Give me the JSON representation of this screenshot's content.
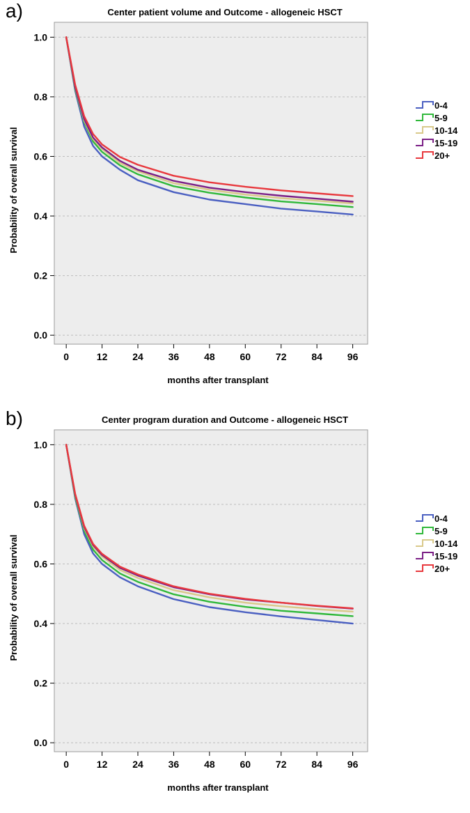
{
  "panels": [
    {
      "label": "a)",
      "chart_data": {
        "type": "line",
        "title": "Center patient volume and Outcome - allogeneic HSCT",
        "xlabel": "months after transplant",
        "ylabel": "Probability of overall survival",
        "xlim": [
          -4,
          101
        ],
        "ylim": [
          -0.03,
          1.05
        ],
        "xticks": [
          0,
          12,
          24,
          36,
          48,
          60,
          72,
          84,
          96
        ],
        "yticks": [
          0.0,
          0.2,
          0.4,
          0.6,
          0.8,
          1.0
        ],
        "ytick_labels": [
          "0.0",
          "0.2",
          "0.4",
          "0.6",
          "0.8",
          "1.0"
        ],
        "grid": "horizontal dashed",
        "legend_position": "right",
        "x": [
          0,
          3,
          6,
          9,
          12,
          18,
          24,
          36,
          48,
          60,
          72,
          84,
          96
        ],
        "series": [
          {
            "name": "0-4",
            "color": "#4a5fc1",
            "values": [
              1.0,
              0.82,
              0.7,
              0.635,
              0.6,
              0.555,
              0.52,
              0.48,
              0.455,
              0.44,
              0.425,
              0.415,
              0.405
            ]
          },
          {
            "name": "5-9",
            "color": "#2fb83a",
            "values": [
              1.0,
              0.825,
              0.715,
              0.65,
              0.615,
              0.57,
              0.54,
              0.5,
              0.478,
              0.462,
              0.449,
              0.44,
              0.43
            ]
          },
          {
            "name": "10-14",
            "color": "#d9c98a",
            "values": [
              1.0,
              0.83,
              0.72,
              0.658,
              0.625,
              0.578,
              0.55,
              0.51,
              0.488,
              0.472,
              0.46,
              0.451,
              0.442
            ]
          },
          {
            "name": "15-19",
            "color": "#7b1f86",
            "values": [
              1.0,
              0.832,
              0.725,
              0.663,
              0.63,
              0.585,
              0.555,
              0.518,
              0.495,
              0.48,
              0.468,
              0.458,
              0.448
            ]
          },
          {
            "name": "20+",
            "color": "#e8383d",
            "values": [
              1.0,
              0.84,
              0.735,
              0.675,
              0.64,
              0.598,
              0.572,
              0.535,
              0.513,
              0.498,
              0.486,
              0.476,
              0.467
            ]
          }
        ]
      }
    },
    {
      "label": "b)",
      "chart_data": {
        "type": "line",
        "title": "Center program duration and Outcome - allogeneic HSCT",
        "xlabel": "months after transplant",
        "ylabel": "Probability of overall survival",
        "xlim": [
          -4,
          101
        ],
        "ylim": [
          -0.03,
          1.05
        ],
        "xticks": [
          0,
          12,
          24,
          36,
          48,
          60,
          72,
          84,
          96
        ],
        "yticks": [
          0.0,
          0.2,
          0.4,
          0.6,
          0.8,
          1.0
        ],
        "ytick_labels": [
          "0.0",
          "0.2",
          "0.4",
          "0.6",
          "0.8",
          "1.0"
        ],
        "grid": "horizontal dashed",
        "legend_position": "right",
        "x": [
          0,
          3,
          6,
          9,
          12,
          18,
          24,
          36,
          48,
          60,
          72,
          84,
          96
        ],
        "series": [
          {
            "name": "0-4",
            "color": "#4a5fc1",
            "values": [
              1.0,
              0.82,
              0.7,
              0.635,
              0.6,
              0.555,
              0.525,
              0.482,
              0.455,
              0.438,
              0.424,
              0.412,
              0.4
            ]
          },
          {
            "name": "5-9",
            "color": "#2fb83a",
            "values": [
              1.0,
              0.825,
              0.712,
              0.648,
              0.613,
              0.568,
              0.54,
              0.498,
              0.473,
              0.456,
              0.443,
              0.434,
              0.425
            ]
          },
          {
            "name": "10-14",
            "color": "#d9c98a",
            "values": [
              1.0,
              0.83,
              0.72,
              0.658,
              0.625,
              0.58,
              0.553,
              0.512,
              0.488,
              0.47,
              0.458,
              0.448,
              0.44
            ]
          },
          {
            "name": "15-19",
            "color": "#7b1f86",
            "values": [
              1.0,
              0.832,
              0.724,
              0.663,
              0.63,
              0.587,
              0.561,
              0.522,
              0.498,
              0.481,
              0.47,
              0.459,
              0.45
            ]
          },
          {
            "name": "20+",
            "color": "#e8383d",
            "values": [
              1.0,
              0.835,
              0.728,
              0.667,
              0.634,
              0.591,
              0.565,
              0.525,
              0.5,
              0.483,
              0.47,
              0.46,
              0.451
            ]
          }
        ]
      }
    }
  ]
}
